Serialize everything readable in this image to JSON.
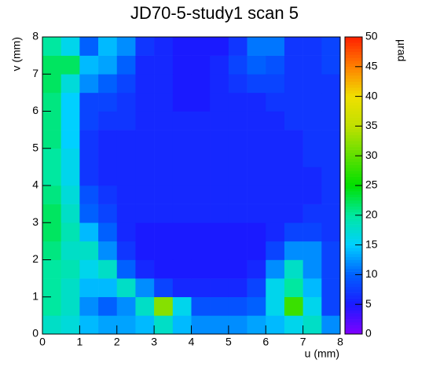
{
  "chart_data": {
    "type": "heatmap",
    "title": "JD70-5-study1 scan 5",
    "xlabel": "u (mm)",
    "ylabel": "v (mm)",
    "zlabel": "µrad",
    "xbins": [
      0,
      0.5,
      1,
      1.5,
      2,
      2.5,
      3,
      3.5,
      4,
      4.5,
      5,
      5.5,
      6,
      6.5,
      7,
      7.5,
      8
    ],
    "ybins": [
      0,
      0.5,
      1,
      1.5,
      2,
      2.5,
      3,
      3.5,
      4,
      4.5,
      5,
      5.5,
      6,
      6.5,
      7,
      7.5,
      8
    ],
    "z": [
      [
        18,
        17,
        14,
        13,
        13,
        14,
        18,
        14,
        12,
        12,
        12,
        13,
        14,
        16,
        18,
        12
      ],
      [
        20,
        18,
        12,
        10,
        12,
        18,
        32,
        16,
        9,
        9,
        9,
        10,
        16,
        28,
        16,
        8
      ],
      [
        20,
        18,
        14,
        14,
        18,
        12,
        8,
        6,
        6,
        6,
        6,
        8,
        16,
        20,
        14,
        8
      ],
      [
        20,
        19,
        16,
        18,
        10,
        6,
        5,
        5,
        5,
        5,
        5,
        6,
        12,
        18,
        12,
        8
      ],
      [
        21,
        18,
        18,
        12,
        7,
        5,
        5,
        5,
        5,
        5,
        5,
        5,
        8,
        12,
        12,
        8
      ],
      [
        22,
        19,
        14,
        10,
        6,
        5,
        5,
        5,
        5,
        5,
        5,
        5,
        6,
        8,
        8,
        7
      ],
      [
        22,
        18,
        10,
        8,
        6,
        6,
        6,
        6,
        6,
        6,
        6,
        6,
        6,
        6,
        7,
        7
      ],
      [
        21,
        17,
        9,
        7,
        6,
        6,
        6,
        6,
        6,
        6,
        6,
        6,
        6,
        6,
        6,
        7
      ],
      [
        20,
        16,
        7,
        6,
        6,
        6,
        6,
        6,
        6,
        6,
        6,
        6,
        6,
        6,
        6,
        7
      ],
      [
        20,
        16,
        7,
        6,
        6,
        6,
        6,
        6,
        6,
        6,
        6,
        6,
        6,
        6,
        7,
        7
      ],
      [
        21,
        15,
        7,
        6,
        6,
        6,
        6,
        6,
        6,
        6,
        6,
        6,
        6,
        6,
        7,
        7
      ],
      [
        21,
        15,
        8,
        7,
        7,
        6,
        6,
        6,
        6,
        6,
        6,
        6,
        6,
        7,
        7,
        7
      ],
      [
        21,
        15,
        8,
        8,
        7,
        6,
        6,
        5,
        5,
        6,
        6,
        6,
        7,
        7,
        7,
        7
      ],
      [
        22,
        17,
        12,
        10,
        8,
        6,
        6,
        5,
        5,
        6,
        7,
        8,
        8,
        7,
        7,
        7
      ],
      [
        22,
        22,
        14,
        13,
        10,
        6,
        6,
        5,
        5,
        6,
        8,
        10,
        9,
        7,
        7,
        8
      ],
      [
        20,
        16,
        10,
        14,
        12,
        7,
        6,
        5,
        5,
        5,
        7,
        11,
        11,
        7,
        7,
        8
      ]
    ],
    "xlim": [
      0,
      8
    ],
    "ylim": [
      0,
      8
    ],
    "zlim": [
      0,
      50
    ],
    "xticks": [
      0,
      1,
      2,
      3,
      4,
      5,
      6,
      7,
      8
    ],
    "yticks": [
      0,
      1,
      2,
      3,
      4,
      5,
      6,
      7,
      8
    ],
    "zticks": [
      0,
      5,
      10,
      15,
      20,
      25,
      30,
      35,
      40,
      45,
      50
    ],
    "colorscale": [
      [
        0,
        "#8000ff"
      ],
      [
        5,
        "#1a1aff"
      ],
      [
        10,
        "#0060ff"
      ],
      [
        15,
        "#00d0ff"
      ],
      [
        20,
        "#00e8a0"
      ],
      [
        25,
        "#00e000"
      ],
      [
        30,
        "#60e000"
      ],
      [
        35,
        "#c0e000"
      ],
      [
        40,
        "#f0e000"
      ],
      [
        45,
        "#ff8000"
      ],
      [
        50,
        "#ff2000"
      ]
    ]
  }
}
